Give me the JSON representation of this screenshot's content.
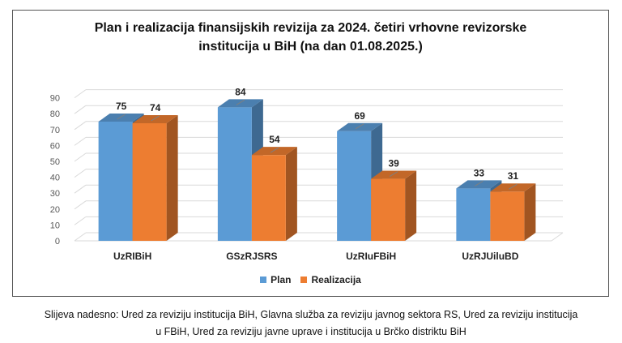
{
  "chart_data": {
    "type": "bar",
    "title_line1": "Plan i realizacija finansijskih revizija za 2024. četiri vrhovne revizorske",
    "title_line2": "institucija u BiH (na dan 01.08.2025.)",
    "categories": [
      "UzRIBiH",
      "GSzRJSRS",
      "UzRIuFBiH",
      "UzRJUiluBD"
    ],
    "series": [
      {
        "name": "Plan",
        "values": [
          75,
          84,
          69,
          33
        ],
        "color": "#5B9BD5"
      },
      {
        "name": "Realizacija",
        "values": [
          74,
          54,
          39,
          31
        ],
        "color": "#ED7D31"
      }
    ],
    "yticks": [
      0,
      10,
      20,
      30,
      40,
      50,
      60,
      70,
      80,
      90
    ],
    "ylim": [
      0,
      90
    ],
    "style": "3d-clustered-column",
    "legend_position": "bottom"
  },
  "footnote": {
    "line1": "Slijeva nadesno: Ured za reviziju institucija BiH, Glavna služba za reviziju javnog sektora RS, Ured za reviziju institucija",
    "line2": "u FBiH, Ured za reviziju javne uprave i institucija u Brčko distriktu BiH"
  }
}
